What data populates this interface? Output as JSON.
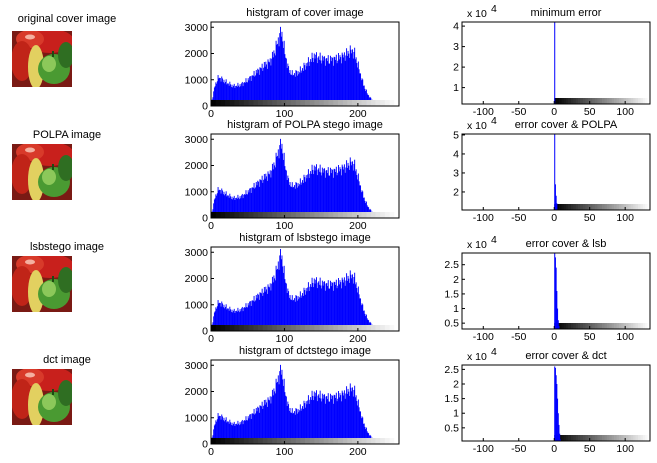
{
  "images": [
    {
      "title": "original cover image"
    },
    {
      "title": "POLPA image"
    },
    {
      "title": "lsbstego image"
    },
    {
      "title": "dct image"
    }
  ],
  "colors": {
    "bar": "#0000ff",
    "axis": "#000000",
    "bg": "#ffffff"
  },
  "chart_data": [
    {
      "type": "bar",
      "title": "histgram of cover image",
      "xlim": [
        0,
        256
      ],
      "ylim": [
        0,
        3200
      ],
      "xticks": [
        0,
        100,
        200
      ],
      "yticks": [
        0,
        1000,
        2000,
        3000
      ],
      "profile_x": [
        0,
        5,
        10,
        15,
        20,
        30,
        40,
        50,
        60,
        70,
        80,
        85,
        90,
        93,
        95,
        97,
        100,
        105,
        110,
        120,
        130,
        140,
        150,
        160,
        170,
        180,
        185,
        190,
        195,
        200,
        205,
        210,
        215,
        220,
        225,
        230
      ],
      "profile_y": [
        100,
        800,
        1100,
        1000,
        900,
        750,
        800,
        1000,
        1250,
        1500,
        1700,
        2000,
        2400,
        2700,
        2800,
        2600,
        2000,
        1400,
        1200,
        1300,
        1600,
        1900,
        1800,
        1750,
        1800,
        1900,
        2000,
        2100,
        2000,
        1500,
        1000,
        600,
        350,
        200,
        80,
        0
      ]
    },
    {
      "type": "bar",
      "title": "histgram of POLPA stego image",
      "xlim": [
        0,
        256
      ],
      "ylim": [
        0,
        3200
      ],
      "xticks": [
        0,
        100,
        200
      ],
      "yticks": [
        0,
        1000,
        2000,
        3000
      ],
      "profile_x": [
        0,
        5,
        10,
        15,
        20,
        30,
        40,
        50,
        60,
        70,
        80,
        85,
        90,
        93,
        95,
        97,
        100,
        105,
        110,
        120,
        130,
        140,
        150,
        160,
        170,
        180,
        185,
        190,
        195,
        200,
        205,
        210,
        215,
        220,
        225,
        230
      ],
      "profile_y": [
        100,
        800,
        1100,
        1000,
        900,
        750,
        800,
        1000,
        1250,
        1500,
        1700,
        2000,
        2400,
        2700,
        2800,
        2600,
        2000,
        1400,
        1200,
        1300,
        1600,
        1900,
        1800,
        1750,
        1800,
        1900,
        2000,
        2100,
        2000,
        1500,
        1000,
        600,
        350,
        200,
        80,
        0
      ]
    },
    {
      "type": "bar",
      "title": "histgram of lsbstego image",
      "xlim": [
        0,
        256
      ],
      "ylim": [
        0,
        3200
      ],
      "xticks": [
        0,
        100,
        200
      ],
      "yticks": [
        0,
        1000,
        2000,
        3000
      ],
      "profile_x": [
        0,
        5,
        10,
        15,
        20,
        30,
        40,
        50,
        60,
        70,
        80,
        85,
        90,
        93,
        95,
        97,
        100,
        105,
        110,
        120,
        130,
        140,
        150,
        160,
        170,
        180,
        185,
        190,
        195,
        200,
        205,
        210,
        215,
        220,
        225,
        230
      ],
      "profile_y": [
        100,
        800,
        1100,
        1000,
        900,
        750,
        800,
        1000,
        1250,
        1500,
        1700,
        2000,
        2400,
        2800,
        2900,
        2600,
        2000,
        1400,
        1200,
        1300,
        1600,
        1900,
        1800,
        1750,
        1800,
        1900,
        2000,
        2100,
        2000,
        1500,
        1000,
        600,
        350,
        200,
        80,
        0
      ]
    },
    {
      "type": "bar",
      "title": "histgram of dctstego image",
      "xlim": [
        0,
        256
      ],
      "ylim": [
        0,
        3200
      ],
      "xticks": [
        0,
        100,
        200
      ],
      "yticks": [
        0,
        1000,
        2000,
        3000
      ],
      "profile_x": [
        0,
        5,
        10,
        15,
        20,
        30,
        40,
        50,
        60,
        70,
        80,
        85,
        90,
        93,
        95,
        97,
        100,
        105,
        110,
        120,
        130,
        140,
        150,
        160,
        170,
        180,
        185,
        190,
        195,
        200,
        205,
        210,
        215,
        220,
        225,
        230
      ],
      "profile_y": [
        100,
        800,
        1100,
        1000,
        900,
        750,
        800,
        1000,
        1250,
        1500,
        1700,
        2000,
        2400,
        2700,
        2800,
        2600,
        2000,
        1400,
        1200,
        1300,
        1600,
        1900,
        1800,
        1750,
        1800,
        1900,
        2000,
        2100,
        2000,
        1500,
        1000,
        600,
        350,
        200,
        80,
        0
      ]
    },
    {
      "type": "bar",
      "title": "minimum error",
      "exponent": "x 10",
      "exponent_power": "4",
      "xlim": [
        -130,
        135
      ],
      "ylim": [
        0.2,
        4.2
      ],
      "xticks": [
        -100,
        -50,
        0,
        50,
        100
      ],
      "yticks": [
        1,
        2,
        3,
        4
      ],
      "bars": [
        {
          "x": 0,
          "y": 4.2
        }
      ]
    },
    {
      "type": "bar",
      "title": "error cover & POLPA",
      "exponent": "x 10",
      "exponent_power": "4",
      "xlim": [
        -130,
        135
      ],
      "ylim": [
        1.05,
        5.05
      ],
      "xticks": [
        -100,
        -50,
        0,
        50,
        100
      ],
      "yticks": [
        2,
        3,
        4,
        5
      ],
      "bars": [
        {
          "x": 0,
          "y": 5.05
        },
        {
          "x": 1,
          "y": 2.4
        },
        {
          "x": 2,
          "y": 1.8
        },
        {
          "x": 3,
          "y": 1.4
        }
      ]
    },
    {
      "type": "bar",
      "title": "error  cover & lsb",
      "exponent": "x 10",
      "exponent_power": "4",
      "xlim": [
        -130,
        135
      ],
      "ylim": [
        0.3,
        2.9
      ],
      "xticks": [
        -100,
        -50,
        0,
        50,
        100
      ],
      "yticks": [
        0.5,
        1,
        1.5,
        2,
        2.5
      ],
      "bars": [
        {
          "x": 0,
          "y": 2.9
        },
        {
          "x": 1,
          "y": 2.75
        },
        {
          "x": 2,
          "y": 2.4
        },
        {
          "x": 3,
          "y": 1.6
        },
        {
          "x": 4,
          "y": 1.0
        },
        {
          "x": 5,
          "y": 0.6
        },
        {
          "x": 6,
          "y": 0.4
        }
      ]
    },
    {
      "type": "bar",
      "title": "error cover & dct",
      "exponent": "x 10",
      "exponent_power": "4",
      "xlim": [
        -130,
        135
      ],
      "ylim": [
        0.05,
        2.65
      ],
      "xticks": [
        -100,
        -50,
        0,
        50,
        100
      ],
      "yticks": [
        0.5,
        1,
        1.5,
        2,
        2.5
      ],
      "bars": [
        {
          "x": 0,
          "y": 2.6
        },
        {
          "x": 1,
          "y": 2.55
        },
        {
          "x": 2,
          "y": 2.3
        },
        {
          "x": 3,
          "y": 2.0
        },
        {
          "x": 4,
          "y": 1.5
        },
        {
          "x": 5,
          "y": 1.0
        },
        {
          "x": 6,
          "y": 0.6
        },
        {
          "x": 7,
          "y": 0.3
        },
        {
          "x": 8,
          "y": 0.1
        }
      ]
    }
  ]
}
